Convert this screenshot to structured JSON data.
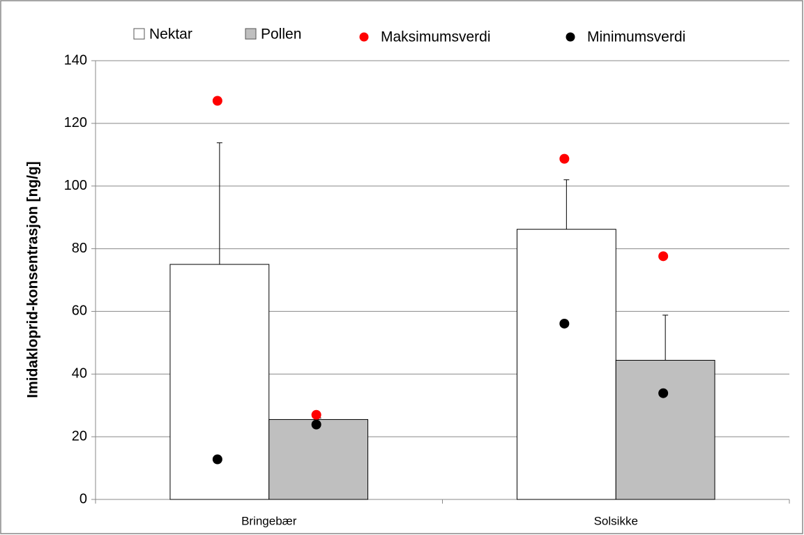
{
  "chart_data": {
    "type": "bar",
    "y_label": "Imidakloprid-konsentrasjon [ng/g]",
    "categories": [
      "Bringebær",
      "Solsikke"
    ],
    "series": [
      {
        "name": "Nektar",
        "color": "#ffffff",
        "values": [
          75,
          86.2
        ],
        "errors": [
          38.8,
          15.8
        ]
      },
      {
        "name": "Pollen",
        "color": "#bfbfbf",
        "values": [
          25.5,
          44.4
        ],
        "errors": [
          0.5,
          14.4
        ]
      }
    ],
    "markers": [
      {
        "name": "Maksimumsverdi",
        "color": "#ff0000",
        "values": [
          [
            127.2,
            27
          ],
          [
            108.7,
            77.6
          ]
        ]
      },
      {
        "name": "Minimumsverdi",
        "color": "#000000",
        "values": [
          [
            12.8,
            23.9
          ],
          [
            56.1,
            33.9
          ]
        ]
      }
    ],
    "ylim": [
      0,
      140
    ],
    "yticks": [
      0,
      20,
      40,
      60,
      80,
      100,
      120,
      140
    ],
    "grid": true
  }
}
